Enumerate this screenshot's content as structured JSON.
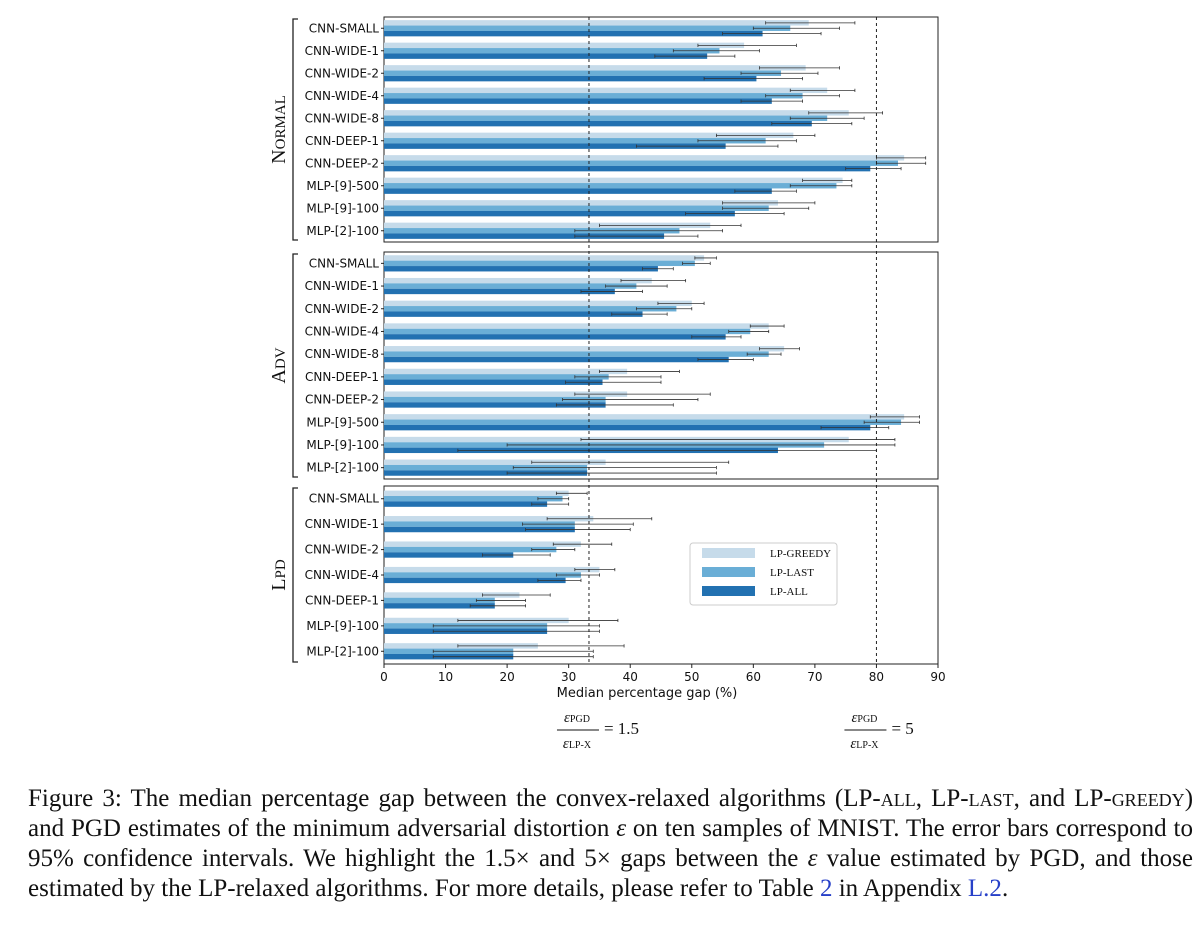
{
  "chart_data": {
    "type": "bar",
    "orientation": "horizontal",
    "xlabel": "Median percentage gap (%)",
    "xlim": [
      0,
      90
    ],
    "xticks": [
      0,
      10,
      20,
      30,
      40,
      50,
      60,
      70,
      80,
      90
    ],
    "legend_position": "right-middle of bottom panel",
    "series": [
      {
        "name": "LP-GREEDY",
        "color": "#c6dbea"
      },
      {
        "name": "LP-LAST",
        "color": "#6aaed6"
      },
      {
        "name": "LP-ALL",
        "color": "#2271b1"
      }
    ],
    "reference_lines": [
      {
        "x": 33.3,
        "label_num": "ε",
        "label_num_sub": "PGD",
        "label_den": "ε",
        "label_den_sub": "LP-X",
        "label_value": "= 1.5"
      },
      {
        "x": 80,
        "label_num": "ε",
        "label_num_sub": "PGD",
        "label_den": "ε",
        "label_den_sub": "LP-X",
        "label_value": "= 5"
      }
    ],
    "panels": [
      {
        "title": "NORMAL",
        "categories": [
          "CNN-SMALL",
          "CNN-WIDE-1",
          "CNN-WIDE-2",
          "CNN-WIDE-4",
          "CNN-WIDE-8",
          "CNN-DEEP-1",
          "CNN-DEEP-2",
          "MLP-[9]-500",
          "MLP-[9]-100",
          "MLP-[2]-100"
        ],
        "values": [
          [
            69,
            66,
            61.5
          ],
          [
            58.5,
            54.5,
            52.5
          ],
          [
            68.5,
            64.5,
            60.5
          ],
          [
            72,
            68,
            63
          ],
          [
            75.5,
            72,
            69.5
          ],
          [
            66.5,
            62,
            55.5
          ],
          [
            84.5,
            83.5,
            79
          ],
          [
            74.5,
            73.5,
            63
          ],
          [
            64,
            62.5,
            57
          ],
          [
            53,
            48,
            45.5
          ]
        ],
        "errors": [
          [
            [
              62,
              76.5
            ],
            [
              60,
              74
            ],
            [
              55,
              71
            ]
          ],
          [
            [
              51,
              67
            ],
            [
              47,
              61
            ],
            [
              44,
              57
            ]
          ],
          [
            [
              61,
              74
            ],
            [
              58,
              70.5
            ],
            [
              52,
              68
            ]
          ],
          [
            [
              66,
              76.5
            ],
            [
              62,
              74
            ],
            [
              58,
              68
            ]
          ],
          [
            [
              69,
              81
            ],
            [
              66,
              78
            ],
            [
              63,
              76
            ]
          ],
          [
            [
              54,
              70
            ],
            [
              51,
              67
            ],
            [
              41,
              64
            ]
          ],
          [
            [
              80,
              88
            ],
            [
              80,
              88
            ],
            [
              75,
              84
            ]
          ],
          [
            [
              68,
              76
            ],
            [
              66,
              76
            ],
            [
              57,
              67
            ]
          ],
          [
            [
              55,
              70
            ],
            [
              55,
              69
            ],
            [
              49,
              65
            ]
          ],
          [
            [
              35,
              58
            ],
            [
              31,
              55
            ],
            [
              31,
              51
            ]
          ]
        ]
      },
      {
        "title": "ADV",
        "categories": [
          "CNN-SMALL",
          "CNN-WIDE-1",
          "CNN-WIDE-2",
          "CNN-WIDE-4",
          "CNN-WIDE-8",
          "CNN-DEEP-1",
          "CNN-DEEP-2",
          "MLP-[9]-500",
          "MLP-[9]-100",
          "MLP-[2]-100"
        ],
        "values": [
          [
            52,
            50.5,
            44.5
          ],
          [
            43.5,
            41,
            37.5
          ],
          [
            50,
            47.5,
            42
          ],
          [
            62.5,
            59.5,
            55.5
          ],
          [
            65,
            62.5,
            56
          ],
          [
            39.5,
            36.5,
            35.5
          ],
          [
            39.5,
            36,
            36
          ],
          [
            84.5,
            84,
            79
          ],
          [
            75.5,
            71.5,
            64
          ],
          [
            36,
            33,
            33
          ]
        ],
        "errors": [
          [
            [
              50.5,
              54
            ],
            [
              48.5,
              53
            ],
            [
              42,
              47
            ]
          ],
          [
            [
              38.5,
              49
            ],
            [
              36,
              46
            ],
            [
              32,
              42
            ]
          ],
          [
            [
              44.5,
              52
            ],
            [
              41,
              50
            ],
            [
              37,
              46
            ]
          ],
          [
            [
              59.5,
              65
            ],
            [
              56,
              62.5
            ],
            [
              50,
              58
            ]
          ],
          [
            [
              61,
              67.5
            ],
            [
              59,
              64.5
            ],
            [
              51,
              60
            ]
          ],
          [
            [
              35,
              48
            ],
            [
              31,
              45
            ],
            [
              29.5,
              45
            ]
          ],
          [
            [
              31,
              53
            ],
            [
              29,
              51
            ],
            [
              28,
              47
            ]
          ],
          [
            [
              79,
              87
            ],
            [
              78,
              87
            ],
            [
              71,
              82
            ]
          ],
          [
            [
              32,
              83
            ],
            [
              20,
              83
            ],
            [
              12,
              80
            ]
          ],
          [
            [
              24,
              56
            ],
            [
              21,
              54
            ],
            [
              20,
              54
            ]
          ]
        ]
      },
      {
        "title": "LPD",
        "categories": [
          "CNN-SMALL",
          "CNN-WIDE-1",
          "CNN-WIDE-2",
          "CNN-WIDE-4",
          "CNN-DEEP-1",
          "MLP-[9]-100",
          "MLP-[2]-100"
        ],
        "values": [
          [
            30,
            29,
            26.5
          ],
          [
            34,
            31,
            31
          ],
          [
            32,
            28,
            21
          ],
          [
            35,
            32,
            29.5
          ],
          [
            22,
            18,
            18
          ],
          [
            30,
            26.5,
            26.5
          ],
          [
            25,
            21,
            21
          ]
        ],
        "errors": [
          [
            [
              28,
              33
            ],
            [
              25,
              30
            ],
            [
              24,
              30
            ]
          ],
          [
            [
              26.5,
              43.5
            ],
            [
              22.5,
              40.5
            ],
            [
              23,
              40
            ]
          ],
          [
            [
              27.5,
              37
            ],
            [
              24,
              31
            ],
            [
              16,
              27
            ]
          ],
          [
            [
              31,
              37.5
            ],
            [
              28,
              35
            ],
            [
              25,
              32
            ]
          ],
          [
            [
              16,
              27
            ],
            [
              15,
              23
            ],
            [
              14,
              23
            ]
          ],
          [
            [
              12,
              38
            ],
            [
              8,
              35
            ],
            [
              8,
              35
            ]
          ],
          [
            [
              12,
              39
            ],
            [
              8,
              34
            ],
            [
              8,
              34
            ]
          ]
        ]
      }
    ]
  },
  "caption": {
    "p1": "Figure 3: The median percentage gap between the convex-relaxed algorithms (LP-",
    "all": "all",
    "p2": ", LP-",
    "last": "last",
    "p3": ", and LP-",
    "greedy": "greedy",
    "p4": ") and PGD estimates of the minimum adversarial distortion ",
    "eps": "ε",
    "p5": " on ten samples of MNIST. The error bars correspond to 95% confidence intervals. We highlight the 1.5× and 5× gaps between the ",
    "eps2": "ε",
    "p6": " value estimated by PGD, and those estimated by the LP-relaxed algorithms. For more details, please refer to Table ",
    "table_ref": "2",
    "p7": " in Appendix ",
    "appendix_ref": "L.2",
    "p8": "."
  }
}
